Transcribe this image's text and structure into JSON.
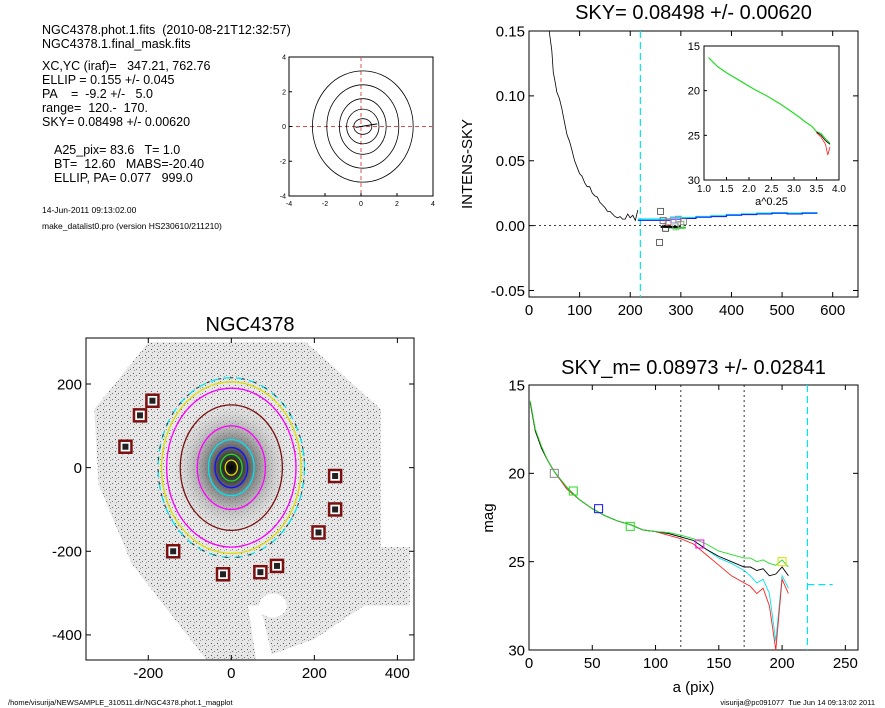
{
  "header": {
    "file_line": "NGC4378.phot.1.fits  (2010-08-21T12:32:57)",
    "mask_line": "NGC4378.1.final_mask.fits",
    "xcyc": "XC,YC (iraf)=   347.21, 762.76",
    "ellip": "ELLIP = 0.155 +/- 0.045",
    "pa": "PA    =  -9.2 +/-   5.0",
    "range": "range=  120.-  170.",
    "sky": "SKY= 0.08498 +/- 0.00620",
    "a25": "A25_pix= 83.6   T= 1.0",
    "bt": "BT=  12.60   MABS=-20.40",
    "ellip_pa": "ELLIP, PA= 0.077   999.0",
    "date": "14-Jun-2011 09:13:02.00",
    "program": "make_datalist0.pro (version HS230610/211210)"
  },
  "footer": {
    "path": "/home/visurija/NEWSAMPLE_310511.dir/NGC4378.phot.1_magplot",
    "user": "visurija@pc091077  Tue Jun 14 09:13:02 2011"
  },
  "colors": {
    "axis": "#000000",
    "cyan": "#00e5ee",
    "red": "#ff2020",
    "green": "#22dd22",
    "blue": "#1010ff",
    "magenta": "#ff00ff",
    "yellow": "#dddd00",
    "dark": "#7a1010",
    "gray": "#888888"
  },
  "chart_data": [
    {
      "id": "contour",
      "type": "contour",
      "title": "",
      "xlim": [
        -4,
        4
      ],
      "ylim": [
        -4,
        4
      ],
      "xticks": [
        "-4",
        "-2",
        "0",
        "2",
        "4"
      ],
      "yticks": [
        "-4",
        "-2",
        "0",
        "2",
        "4"
      ]
    },
    {
      "id": "sky",
      "type": "line",
      "title": "SKY= 0.08498 +/- 0.00620",
      "xlabel": "",
      "ylabel": "INTENS-SKY",
      "xlim": [
        0,
        650
      ],
      "ylim": [
        -0.055,
        0.15
      ],
      "xticks": [
        "0",
        "100",
        "200",
        "300",
        "400",
        "500",
        "600"
      ],
      "yticks": [
        "-0.05",
        "0.00",
        "0.05",
        "0.10",
        "0.15"
      ],
      "profile_x": [
        40,
        45,
        48,
        52,
        55,
        60,
        65,
        70,
        75,
        80,
        85,
        90,
        95,
        100,
        105,
        110,
        115,
        120,
        125,
        130,
        135,
        140,
        145,
        150,
        155,
        160,
        165,
        170,
        175,
        180,
        185,
        190,
        195,
        200,
        205,
        210,
        215
      ],
      "profile_y": [
        0.15,
        0.135,
        0.118,
        0.11,
        0.103,
        0.098,
        0.09,
        0.08,
        0.07,
        0.065,
        0.058,
        0.05,
        0.045,
        0.04,
        0.038,
        0.033,
        0.03,
        0.03,
        0.025,
        0.023,
        0.022,
        0.018,
        0.016,
        0.014,
        0.011,
        0.011,
        0.009,
        0.007,
        0.006,
        0.007,
        0.005,
        0.005,
        0.009,
        0.006,
        0.008,
        0.004,
        0.012
      ],
      "sky_marker_x": 220,
      "box_x": [
        260,
        258,
        270,
        275,
        285,
        290,
        300,
        305,
        295,
        265
      ],
      "box_y": [
        0.011,
        -0.013,
        -0.002,
        0.003,
        0.0045,
        -0.001,
        0.001,
        0.003,
        0.005,
        0.004
      ],
      "steps_x": [
        215,
        250,
        280,
        300,
        330,
        360,
        390,
        420,
        450,
        480,
        510,
        540
      ],
      "steps_cyan": [
        0.005,
        0.005,
        0.0065,
        0.006,
        0.007,
        0.0075,
        0.0085,
        0.009,
        0.0095,
        0.01,
        0.0095,
        0.01
      ],
      "steps_blue": [
        0.004,
        0.004,
        0.005,
        0.0055,
        0.0065,
        0.007,
        0.008,
        0.0085,
        0.009,
        0.0095,
        0.009,
        0.0095
      ],
      "inset": {
        "xlim": [
          1.0,
          4.0
        ],
        "ylim": [
          15,
          30
        ],
        "xlabel": "a^0.25",
        "xticks": [
          "1.0",
          "1.5",
          "2.0",
          "2.5",
          "3.0",
          "3.5",
          "4.0"
        ],
        "yticks": [
          "15",
          "20",
          "25",
          "30"
        ],
        "x": [
          1.1,
          1.3,
          1.5,
          1.8,
          2.1,
          2.4,
          2.7,
          2.9,
          3.1,
          3.25,
          3.4,
          3.5,
          3.6,
          3.7,
          3.8
        ],
        "y": [
          16.3,
          17.3,
          18.0,
          18.9,
          19.8,
          20.6,
          21.5,
          22.2,
          22.9,
          23.5,
          24.0,
          24.6,
          24.8,
          25.4,
          25.9
        ]
      }
    },
    {
      "id": "image",
      "type": "image",
      "title": "NGC4378",
      "xlim": [
        -350,
        440
      ],
      "ylim": [
        -460,
        310
      ],
      "xticks": [
        "-200",
        "0",
        "200",
        "400"
      ],
      "yticks": [
        "200",
        "0",
        "-200",
        "-400"
      ],
      "ellipses": [
        {
          "a": 215,
          "b": 186,
          "color": "cyan",
          "dash": true
        },
        {
          "a": 205,
          "b": 178,
          "color": "yellow",
          "dash": false
        },
        {
          "a": 190,
          "b": 165,
          "color": "magenta",
          "dash": false
        },
        {
          "a": 150,
          "b": 130,
          "color": "dark",
          "dash": false
        },
        {
          "a": 100,
          "b": 90,
          "color": "magenta",
          "dash": false
        },
        {
          "a": 67,
          "b": 60,
          "color": "cyan",
          "dash": false
        },
        {
          "a": 48,
          "b": 42,
          "color": "blue",
          "dash": false
        },
        {
          "a": 32,
          "b": 28,
          "color": "green",
          "dash": false
        },
        {
          "a": 18,
          "b": 15,
          "color": "yellow",
          "dash": false
        }
      ],
      "masks_x": [
        -190,
        -220,
        -255,
        -140,
        -20,
        70,
        110,
        210,
        250,
        250
      ],
      "masks_y": [
        160,
        125,
        50,
        -200,
        -255,
        -250,
        -235,
        -155,
        -100,
        -20
      ]
    },
    {
      "id": "mag",
      "type": "line",
      "title": "SKY_m=  0.08973 +/- 0.02841",
      "xlabel": "a (pix)",
      "ylabel": "mag",
      "xlim": [
        0,
        260
      ],
      "ylim": [
        15,
        30
      ],
      "xticks": [
        "0",
        "50",
        "100",
        "150",
        "200",
        "250"
      ],
      "yticks": [
        "15",
        "20",
        "25",
        "30"
      ],
      "vlines": [
        120,
        170
      ],
      "sky_x": 220,
      "sky_mag": 26.3,
      "x": [
        1,
        5,
        10,
        15,
        20,
        30,
        40,
        50,
        60,
        70,
        80,
        90,
        100,
        110,
        120,
        130,
        140,
        150,
        160,
        170,
        175,
        180,
        185,
        190,
        195,
        200,
        205
      ],
      "black": [
        16.0,
        17.6,
        18.6,
        19.3,
        19.9,
        20.8,
        21.5,
        22.0,
        22.4,
        22.7,
        22.9,
        23.2,
        23.3,
        23.4,
        23.6,
        23.8,
        24.3,
        24.7,
        25.0,
        25.3,
        25.3,
        25.5,
        25.4,
        25.8,
        25.7,
        25.3,
        25.8
      ],
      "green": [
        15.9,
        17.5,
        18.5,
        19.3,
        19.9,
        20.8,
        21.5,
        22.0,
        22.4,
        22.7,
        22.9,
        23.2,
        23.3,
        23.35,
        23.5,
        23.7,
        24.0,
        24.4,
        24.6,
        24.8,
        24.8,
        25.0,
        24.9,
        25.1,
        25.2,
        24.9,
        25.3
      ],
      "red": [
        16.0,
        17.6,
        18.6,
        19.3,
        19.9,
        20.9,
        21.5,
        22.0,
        22.4,
        22.7,
        22.9,
        23.2,
        23.3,
        23.5,
        23.7,
        24.0,
        24.6,
        25.2,
        25.8,
        26.2,
        26.4,
        26.8,
        26.5,
        27.5,
        30.0,
        26.0,
        26.8
      ],
      "cyan": [
        16.0,
        17.6,
        18.6,
        19.3,
        19.9,
        20.9,
        21.5,
        22.0,
        22.4,
        22.7,
        22.9,
        23.2,
        23.3,
        23.4,
        23.6,
        23.8,
        24.3,
        24.8,
        25.1,
        25.5,
        25.8,
        26.2,
        26.0,
        26.8,
        29.5,
        25.8,
        26.5
      ],
      "boxes_x": [
        20,
        35,
        55,
        80,
        135,
        200
      ],
      "boxes_y": [
        20.0,
        21.0,
        22.0,
        23.0,
        24.0,
        25.0
      ],
      "boxes_color": [
        "gray",
        "green",
        "blue",
        "green",
        "magenta",
        "yellow"
      ]
    }
  ]
}
